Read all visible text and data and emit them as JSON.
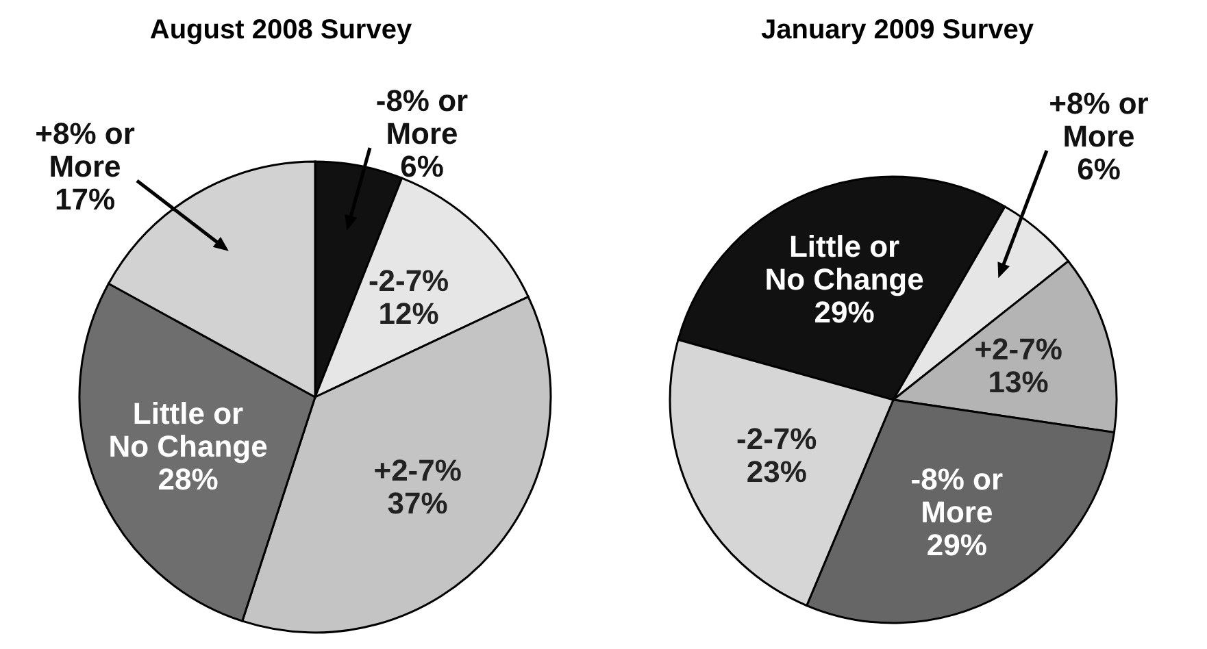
{
  "chart_data": [
    {
      "type": "pie",
      "title": "August 2008 Survey",
      "categories": [
        "-8% or More",
        "-2-7%",
        "+2-7%",
        "Little or No Change",
        "+8% or More"
      ],
      "values": [
        6,
        12,
        37,
        28,
        17
      ],
      "value_labels": [
        "6%",
        "12%",
        "37%",
        "28%",
        "17%"
      ],
      "colors": [
        "#111111",
        "#e6e6e6",
        "#c4c4c4",
        "#6e6e6e",
        "#d2d2d2"
      ],
      "legend": false
    },
    {
      "type": "pie",
      "title": "January 2009 Survey",
      "categories": [
        "Little or No Change",
        "+8% or More",
        "+2-7%",
        "-8% or More",
        "-2-7%"
      ],
      "values": [
        29,
        6,
        13,
        29,
        23
      ],
      "value_labels": [
        "29%",
        "6%",
        "13%",
        "29%",
        "23%"
      ],
      "colors": [
        "#111111",
        "#e6e6e6",
        "#b4b4b4",
        "#666666",
        "#d6d6d6"
      ],
      "legend": false
    }
  ]
}
